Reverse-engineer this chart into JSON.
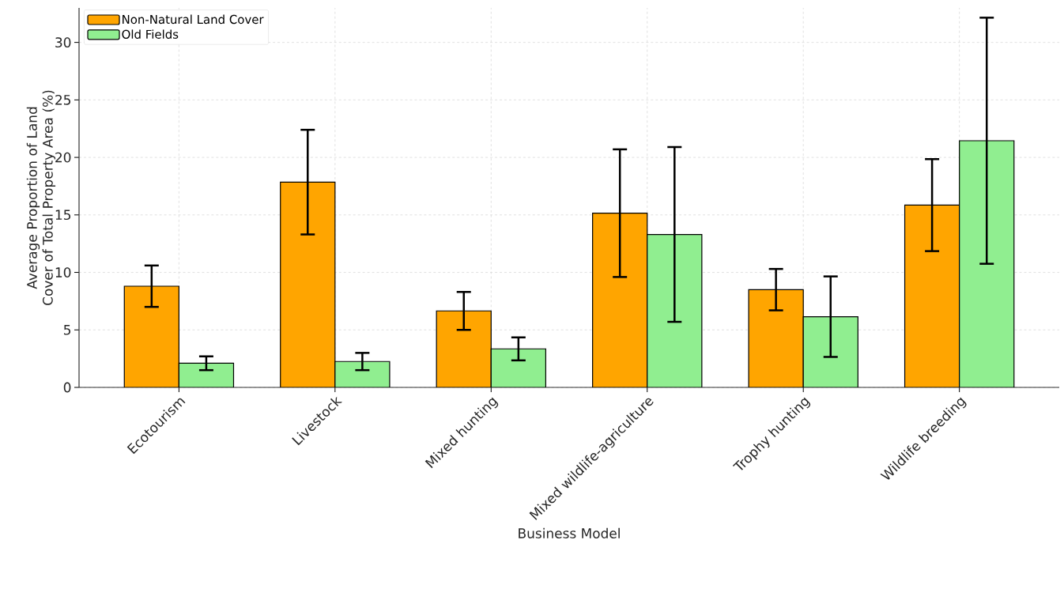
{
  "chart_data": {
    "type": "bar",
    "xlabel": "Business Model",
    "ylabel": "Average Proportion of Land Cover of Total Property Area (%)",
    "categories": [
      "Ecotourism",
      "Livestock",
      "Mixed hunting",
      "Mixed wildlife-agriculture",
      "Trophy hunting",
      "Wildlife breeding"
    ],
    "series": [
      {
        "name": "Non-Natural Land Cover",
        "color": "#ffa500",
        "values": [
          8.8,
          17.85,
          6.65,
          15.15,
          8.5,
          15.85
        ],
        "errors": [
          1.8,
          4.55,
          1.65,
          5.55,
          1.8,
          4.0
        ]
      },
      {
        "name": "Old Fields",
        "color": "#90ee90",
        "values": [
          2.1,
          2.25,
          3.35,
          13.3,
          6.15,
          21.45
        ],
        "errors": [
          0.6,
          0.75,
          1.0,
          7.6,
          3.5,
          10.7
        ]
      }
    ],
    "ylim": [
      0,
      33
    ],
    "yticks": [
      0,
      5,
      10,
      15,
      20,
      25,
      30
    ],
    "grid": true,
    "legend": "top left"
  }
}
